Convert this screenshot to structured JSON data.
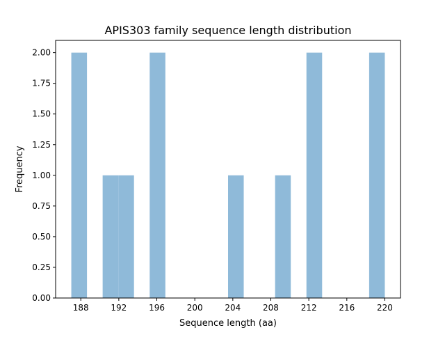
{
  "chart_data": {
    "type": "bar",
    "title": "APIS303 family sequence length distribution",
    "xlabel": "Sequence length (aa)",
    "ylabel": "Frequency",
    "xlim": [
      185.35,
      221.65
    ],
    "ylim": [
      0,
      2.1
    ],
    "x_ticks": [
      188,
      192,
      196,
      200,
      204,
      208,
      212,
      216,
      220
    ],
    "y_ticks": [
      0.0,
      0.25,
      0.5,
      0.75,
      1.0,
      1.25,
      1.5,
      1.75,
      2.0
    ],
    "y_tick_labels": [
      "0.00",
      "0.25",
      "0.50",
      "0.75",
      "1.00",
      "1.25",
      "1.50",
      "1.75",
      "2.00"
    ],
    "bin_width": 1.65,
    "bins": [
      {
        "start": 187.0,
        "end": 188.65,
        "value": 2
      },
      {
        "start": 188.65,
        "end": 190.3,
        "value": 0
      },
      {
        "start": 190.3,
        "end": 191.95,
        "value": 1
      },
      {
        "start": 191.95,
        "end": 193.6,
        "value": 1
      },
      {
        "start": 193.6,
        "end": 195.25,
        "value": 0
      },
      {
        "start": 195.25,
        "end": 196.9,
        "value": 2
      },
      {
        "start": 196.9,
        "end": 198.55,
        "value": 0
      },
      {
        "start": 198.55,
        "end": 200.2,
        "value": 0
      },
      {
        "start": 200.2,
        "end": 201.85,
        "value": 0
      },
      {
        "start": 201.85,
        "end": 203.5,
        "value": 0
      },
      {
        "start": 203.5,
        "end": 205.15,
        "value": 1
      },
      {
        "start": 205.15,
        "end": 206.8,
        "value": 0
      },
      {
        "start": 206.8,
        "end": 208.45,
        "value": 0
      },
      {
        "start": 208.45,
        "end": 210.1,
        "value": 1
      },
      {
        "start": 210.1,
        "end": 211.75,
        "value": 0
      },
      {
        "start": 211.75,
        "end": 213.4,
        "value": 2
      },
      {
        "start": 213.4,
        "end": 215.05,
        "value": 0
      },
      {
        "start": 215.05,
        "end": 216.7,
        "value": 0
      },
      {
        "start": 216.7,
        "end": 218.35,
        "value": 0
      },
      {
        "start": 218.35,
        "end": 220.0,
        "value": 2
      }
    ],
    "bar_color": "#8fbad9",
    "grid": false,
    "legend": "none"
  }
}
